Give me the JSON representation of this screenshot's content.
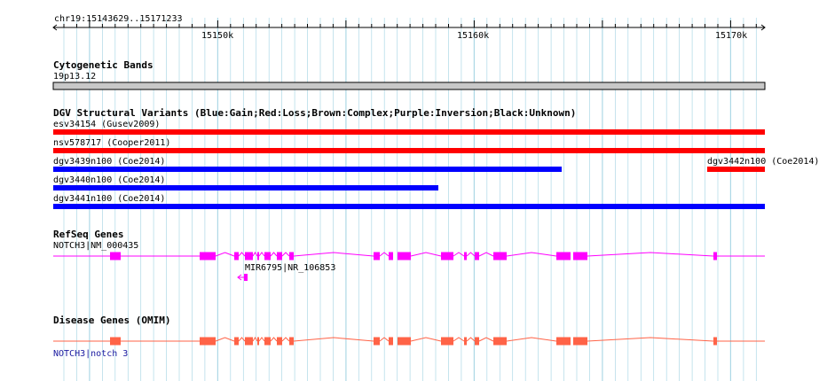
{
  "locus": "chr19:15143629..15171233",
  "ruler": {
    "ticks": [
      "15150k",
      "15160k",
      "15170k"
    ]
  },
  "colors": {
    "grid": "#add8e6",
    "loss": "#ff0000",
    "gain": "#0000ff",
    "refseq": "#ff00ff",
    "omim": "#ff6347",
    "cyto": "#c8c8c8"
  },
  "cytoband": {
    "title": "Cytogenetic Bands",
    "band": "19p13.12"
  },
  "dgv": {
    "title": "DGV Structural Variants (Blue:Gain;Red:Loss;Brown:Complex;Purple:Inversion;Black:Unknown)",
    "items": [
      {
        "label": "esv34154 (Gusev2009)",
        "type": "loss"
      },
      {
        "label": "nsv578717 (Cooper2011)",
        "type": "loss"
      },
      {
        "label": "dgv3439n100 (Coe2014)",
        "type": "gain"
      },
      {
        "label": "dgv3442n100 (Coe2014)",
        "type": "loss"
      },
      {
        "label": "dgv3440n100 (Coe2014)",
        "type": "gain"
      },
      {
        "label": "dgv3441n100 (Coe2014)",
        "type": "gain"
      }
    ]
  },
  "refseq": {
    "title": "RefSeq Genes",
    "genes": [
      {
        "label": "NOTCH3|NM_000435"
      },
      {
        "label": "MIR6795|NR_106853"
      }
    ]
  },
  "omim": {
    "title": "Disease Genes (OMIM)",
    "genes": [
      {
        "label": "NOTCH3|notch 3"
      }
    ]
  }
}
